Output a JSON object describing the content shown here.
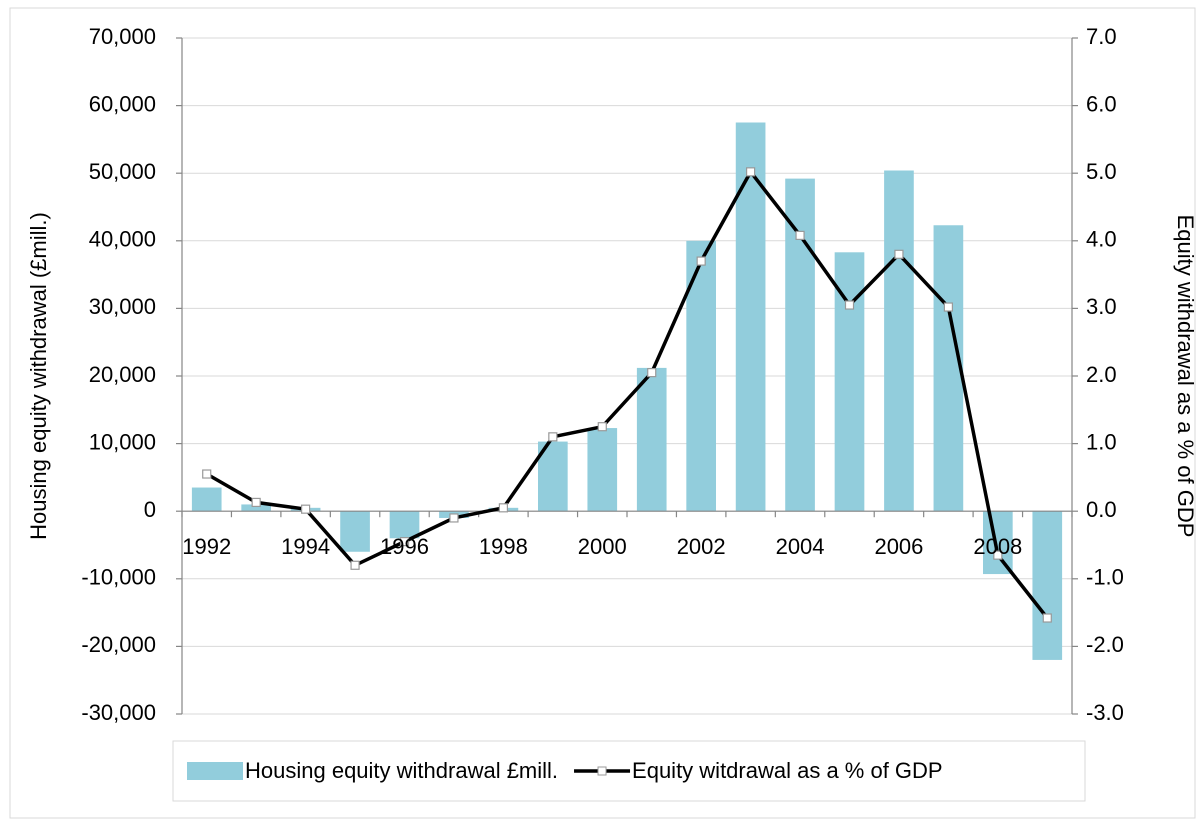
{
  "chart_data": {
    "type": "bar",
    "categories": [
      "1992",
      null,
      "1994",
      null,
      "1996",
      null,
      "1998",
      null,
      "2000",
      null,
      "2002",
      null,
      "2004",
      null,
      "2006",
      null,
      "2008",
      null
    ],
    "series": [
      {
        "name": "Housing equity withdrawal £mill.",
        "color": "#92cddc",
        "type": "bar",
        "values": [
          3500,
          1000,
          500,
          -6000,
          -4000,
          -1000,
          500,
          10300,
          12300,
          21200,
          40000,
          57500,
          49200,
          38300,
          50400,
          42300,
          -9300,
          -22000
        ]
      },
      {
        "name": "Equity witdrawal as a % of GDP",
        "color": "#000000",
        "type": "line",
        "axis": "y2",
        "values": [
          0.55,
          0.13,
          0.03,
          -0.8,
          -0.45,
          -0.1,
          0.05,
          1.1,
          1.25,
          2.05,
          3.7,
          5.02,
          4.08,
          3.05,
          3.8,
          3.02,
          -0.65,
          -1.58
        ]
      }
    ],
    "y_label": "Housing equity withdrawal (£mill.)",
    "y2_label": "Equity withdrawal as a % of GDP",
    "ylim": [
      -30000,
      70000
    ],
    "yticks": [
      {
        "value": -30000,
        "label": "-30,000"
      },
      {
        "value": -20000,
        "label": "-20,000"
      },
      {
        "value": -10000,
        "label": "-10,000"
      },
      0,
      {
        "value": 10000,
        "label": "10,000"
      },
      {
        "value": 20000,
        "label": "20,000"
      },
      {
        "value": 30000,
        "label": "30,000"
      },
      {
        "value": 40000,
        "label": "40,000"
      },
      {
        "value": 50000,
        "label": "50,000"
      },
      {
        "value": 60000,
        "label": "60,000"
      },
      {
        "value": 70000,
        "label": "70,000"
      }
    ],
    "y2lim": [
      -3,
      7
    ],
    "y2ticks": [
      {
        "value": -3,
        "label": "-3.0"
      },
      {
        "value": -2,
        "label": "-2.0"
      },
      {
        "value": -1,
        "label": "-1.0"
      },
      {
        "value": 0,
        "label": "0.0"
      },
      {
        "value": 1,
        "label": "1.0"
      },
      {
        "value": 2,
        "label": "2.0"
      },
      {
        "value": 3,
        "label": "3.0"
      },
      {
        "value": 4,
        "label": "4.0"
      },
      {
        "value": 5,
        "label": "5.0"
      },
      {
        "value": 6,
        "label": "6.0"
      },
      {
        "value": 7,
        "label": "7.0"
      }
    ],
    "grid": true,
    "legend": "bottom"
  }
}
